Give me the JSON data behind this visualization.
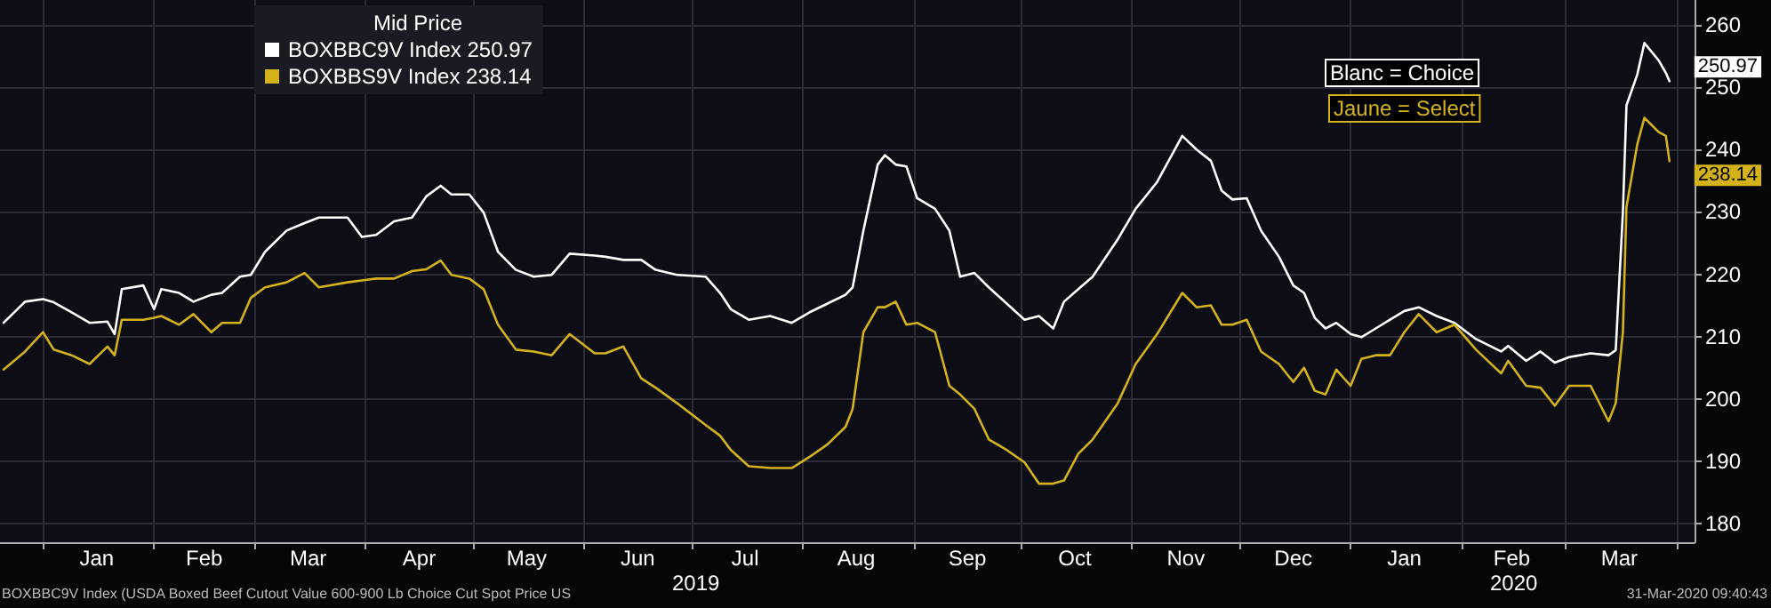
{
  "chart_data": {
    "type": "line",
    "legend_title": "Mid Price",
    "legend": "top left",
    "grid": true,
    "marker": "none",
    "annotations": [
      "Blanc = Choice",
      "Jaune = Select",
      "2019",
      "2020",
      "BOXBBC9V Index (USDA Boxed Beef Cutout Value 600-900 Lb Choice Cut Spot Price US",
      "31-Mar-2020 09:40:43"
    ],
    "x": [
      "2018-12-21",
      "2018-12-27",
      "2019-01-01",
      "2019-01-04",
      "2019-01-09",
      "2019-01-14",
      "2019-01-19",
      "2019-01-21",
      "2019-01-23",
      "2019-01-29",
      "2019-02-01",
      "2019-02-03",
      "2019-02-08",
      "2019-02-12",
      "2019-02-17",
      "2019-02-20",
      "2019-02-25",
      "2019-02-28",
      "2019-03-04",
      "2019-03-10",
      "2019-03-15",
      "2019-03-19",
      "2019-03-27",
      "2019-03-31",
      "2019-04-04",
      "2019-04-09",
      "2019-04-14",
      "2019-04-18",
      "2019-04-22",
      "2019-04-25",
      "2019-04-30",
      "2019-05-04",
      "2019-05-08",
      "2019-05-13",
      "2019-05-18",
      "2019-05-23",
      "2019-05-28",
      "2019-06-04",
      "2019-06-07",
      "2019-06-12",
      "2019-06-17",
      "2019-06-21",
      "2019-06-27",
      "2019-07-05",
      "2019-07-09",
      "2019-07-12",
      "2019-07-17",
      "2019-07-23",
      "2019-07-29",
      "2019-08-03",
      "2019-08-08",
      "2019-08-13",
      "2019-08-15",
      "2019-08-18",
      "2019-08-22",
      "2019-08-24",
      "2019-08-27",
      "2019-08-30",
      "2019-09-02",
      "2019-09-07",
      "2019-09-11",
      "2019-09-14",
      "2019-09-18",
      "2019-09-22",
      "2019-09-27",
      "2019-10-02",
      "2019-10-06",
      "2019-10-10",
      "2019-10-13",
      "2019-10-17",
      "2019-10-21",
      "2019-10-28",
      "2019-11-02",
      "2019-11-08",
      "2019-11-15",
      "2019-11-19",
      "2019-11-23",
      "2019-11-26",
      "2019-11-29",
      "2019-12-03",
      "2019-12-07",
      "2019-12-12",
      "2019-12-16",
      "2019-12-19",
      "2019-12-22",
      "2019-12-25",
      "2019-12-28",
      "2020-01-01",
      "2020-01-04",
      "2020-01-08",
      "2020-01-12",
      "2020-01-16",
      "2020-01-20",
      "2020-01-25",
      "2020-01-30",
      "2020-02-05",
      "2020-02-12",
      "2020-02-14",
      "2020-02-19",
      "2020-02-23",
      "2020-02-27",
      "2020-03-02",
      "2020-03-08",
      "2020-03-13",
      "2020-03-15",
      "2020-03-17",
      "2020-03-18",
      "2020-03-21",
      "2020-03-23",
      "2020-03-27",
      "2020-03-29",
      "2020-03-30"
    ],
    "series": [
      {
        "name": "BOXBBC9V Index 250.97",
        "color": "#ffffff",
        "values": [
          212.2,
          215.6,
          216,
          215.5,
          213.9,
          212.2,
          212.4,
          210.4,
          217.6,
          218.2,
          214.4,
          217.6,
          217,
          215.6,
          216.7,
          217,
          219.6,
          219.9,
          223.6,
          227,
          228.2,
          229.1,
          229.1,
          226,
          226.3,
          228.5,
          229.1,
          232.5,
          234.2,
          232.8,
          232.8,
          229.9,
          223.6,
          220.7,
          219.6,
          219.9,
          223.3,
          223,
          222.8,
          222.3,
          222.3,
          220.7,
          219.9,
          219.6,
          217,
          214.4,
          212.7,
          213.3,
          212.2,
          213.9,
          215.3,
          216.7,
          217.9,
          227,
          237.6,
          239.1,
          237.6,
          237.3,
          232.2,
          230.5,
          227,
          219.6,
          220.2,
          217.9,
          215.3,
          212.7,
          213.3,
          211.3,
          215.6,
          217.6,
          219.6,
          225.6,
          230.5,
          234.8,
          242.2,
          240,
          238.2,
          233.4,
          232,
          232.2,
          227,
          222.8,
          218.2,
          217,
          213,
          211.3,
          212.2,
          210.4,
          209.9,
          211.3,
          212.7,
          214.1,
          214.7,
          213.3,
          212.2,
          209.6,
          207.6,
          208.5,
          206.1,
          207.6,
          205.8,
          206.7,
          207.3,
          207,
          207.8,
          229.9,
          247.1,
          252,
          257.1,
          254.3,
          252.3,
          250.97
        ],
        "value_labels": [
          null,
          null,
          null,
          null,
          null,
          null,
          null,
          null,
          null,
          null,
          null,
          null,
          null,
          null,
          null,
          null,
          null,
          null,
          null,
          null,
          null,
          null,
          null,
          null,
          null,
          null,
          null,
          null,
          null,
          null,
          null,
          null,
          null,
          null,
          null,
          null,
          null,
          null,
          null,
          null,
          null,
          null,
          null,
          null,
          null,
          null,
          null,
          null,
          null,
          null,
          null,
          null,
          null,
          null,
          null,
          null,
          null,
          null,
          null,
          null,
          null,
          null,
          null,
          null,
          null,
          null,
          null,
          null,
          null,
          null,
          null,
          null,
          null,
          null,
          null,
          null,
          null,
          null,
          null,
          null,
          null,
          null,
          null,
          null,
          null,
          null,
          null,
          null,
          null,
          null,
          null,
          null,
          null,
          null,
          null,
          null,
          null,
          null,
          null,
          null,
          null,
          null,
          null,
          null,
          null,
          null,
          null,
          null,
          null,
          null,
          null,
          "250.97"
        ]
      },
      {
        "name": "BOXBBS9V Index 238.14",
        "color": "#d4b21c",
        "values": [
          204.7,
          207.6,
          210.7,
          207.9,
          207,
          205.6,
          208.4,
          207,
          212.7,
          212.7,
          213,
          213.3,
          211.9,
          213.6,
          210.7,
          212.2,
          212.2,
          216.2,
          217.9,
          218.7,
          220.2,
          217.9,
          218.7,
          219,
          219.3,
          219.3,
          220.5,
          220.8,
          222.2,
          219.9,
          219.3,
          217.6,
          211.9,
          207.9,
          207.6,
          207,
          210.4,
          207.3,
          207.3,
          208.4,
          203.3,
          201.8,
          199.3,
          195.8,
          194.1,
          191.8,
          189.2,
          188.9,
          188.9,
          190.7,
          192.7,
          195.5,
          198.4,
          210.7,
          214.7,
          214.7,
          215.6,
          211.9,
          212.2,
          210.7,
          202.1,
          200.7,
          198.4,
          193.5,
          191.8,
          189.8,
          186.4,
          186.4,
          186.9,
          191.2,
          193.5,
          199.3,
          205.6,
          210.4,
          217,
          214.7,
          215,
          211.9,
          211.9,
          212.7,
          207.6,
          205.6,
          202.7,
          205,
          201.3,
          200.7,
          204.7,
          202.1,
          206.4,
          207,
          207,
          210.7,
          213.6,
          210.7,
          211.9,
          207.9,
          204.1,
          206.1,
          202.1,
          201.8,
          198.9,
          202.1,
          202.1,
          196.4,
          199.3,
          210.7,
          230.8,
          240.8,
          245.1,
          242.8,
          242.2,
          238.14
        ],
        "value_labels": [
          null,
          null,
          null,
          null,
          null,
          null,
          null,
          null,
          null,
          null,
          null,
          null,
          null,
          null,
          null,
          null,
          null,
          null,
          null,
          null,
          null,
          null,
          null,
          null,
          null,
          null,
          null,
          null,
          null,
          null,
          null,
          null,
          null,
          null,
          null,
          null,
          null,
          null,
          null,
          null,
          null,
          null,
          null,
          null,
          null,
          null,
          null,
          null,
          null,
          null,
          null,
          null,
          null,
          null,
          null,
          null,
          null,
          null,
          null,
          null,
          null,
          null,
          null,
          null,
          null,
          null,
          null,
          null,
          null,
          null,
          null,
          null,
          null,
          null,
          null,
          null,
          null,
          null,
          null,
          null,
          null,
          null,
          null,
          null,
          null,
          null,
          null,
          null,
          null,
          null,
          null,
          null,
          null,
          null,
          null,
          null,
          null,
          null,
          null,
          null,
          null,
          null,
          null,
          null,
          null,
          null,
          null,
          null,
          null,
          null,
          null,
          "238.14"
        ]
      }
    ],
    "xlim": [
      "2018-12-20",
      "2020-04-06"
    ],
    "xticks": [
      {
        "value": "2019-01-01",
        "label": null
      },
      {
        "value": "2019-01-16",
        "label": "Jan"
      },
      {
        "value": "2019-02-01",
        "label": null
      },
      {
        "value": "2019-02-15",
        "label": "Feb"
      },
      {
        "value": "2019-03-01",
        "label": null
      },
      {
        "value": "2019-03-16",
        "label": "Mar"
      },
      {
        "value": "2019-04-01",
        "label": null
      },
      {
        "value": "2019-04-16",
        "label": "Apr"
      },
      {
        "value": "2019-05-01",
        "label": null
      },
      {
        "value": "2019-05-16",
        "label": "May"
      },
      {
        "value": "2019-06-01",
        "label": null
      },
      {
        "value": "2019-06-16",
        "label": "Jun"
      },
      {
        "value": "2019-07-01",
        "label": null
      },
      {
        "value": "2019-07-16",
        "label": "Jul"
      },
      {
        "value": "2019-08-01",
        "label": null
      },
      {
        "value": "2019-08-16",
        "label": "Aug"
      },
      {
        "value": "2019-09-01",
        "label": null
      },
      {
        "value": "2019-09-16",
        "label": "Sep"
      },
      {
        "value": "2019-10-01",
        "label": null
      },
      {
        "value": "2019-10-16",
        "label": "Oct"
      },
      {
        "value": "2019-11-01",
        "label": null
      },
      {
        "value": "2019-11-16",
        "label": "Nov"
      },
      {
        "value": "2019-12-01",
        "label": null
      },
      {
        "value": "2019-12-16",
        "label": "Dec"
      },
      {
        "value": "2020-01-01",
        "label": null
      },
      {
        "value": "2020-01-16",
        "label": "Jan"
      },
      {
        "value": "2020-02-01",
        "label": null
      },
      {
        "value": "2020-02-15",
        "label": "Feb"
      },
      {
        "value": "2020-03-01",
        "label": null
      },
      {
        "value": "2020-03-16",
        "label": "Mar"
      },
      {
        "value": "2020-04-01",
        "label": null
      }
    ],
    "ylim": [
      177,
      264
    ],
    "yticks": [
      180,
      190,
      200,
      210,
      220,
      230,
      240,
      250,
      260
    ]
  }
}
